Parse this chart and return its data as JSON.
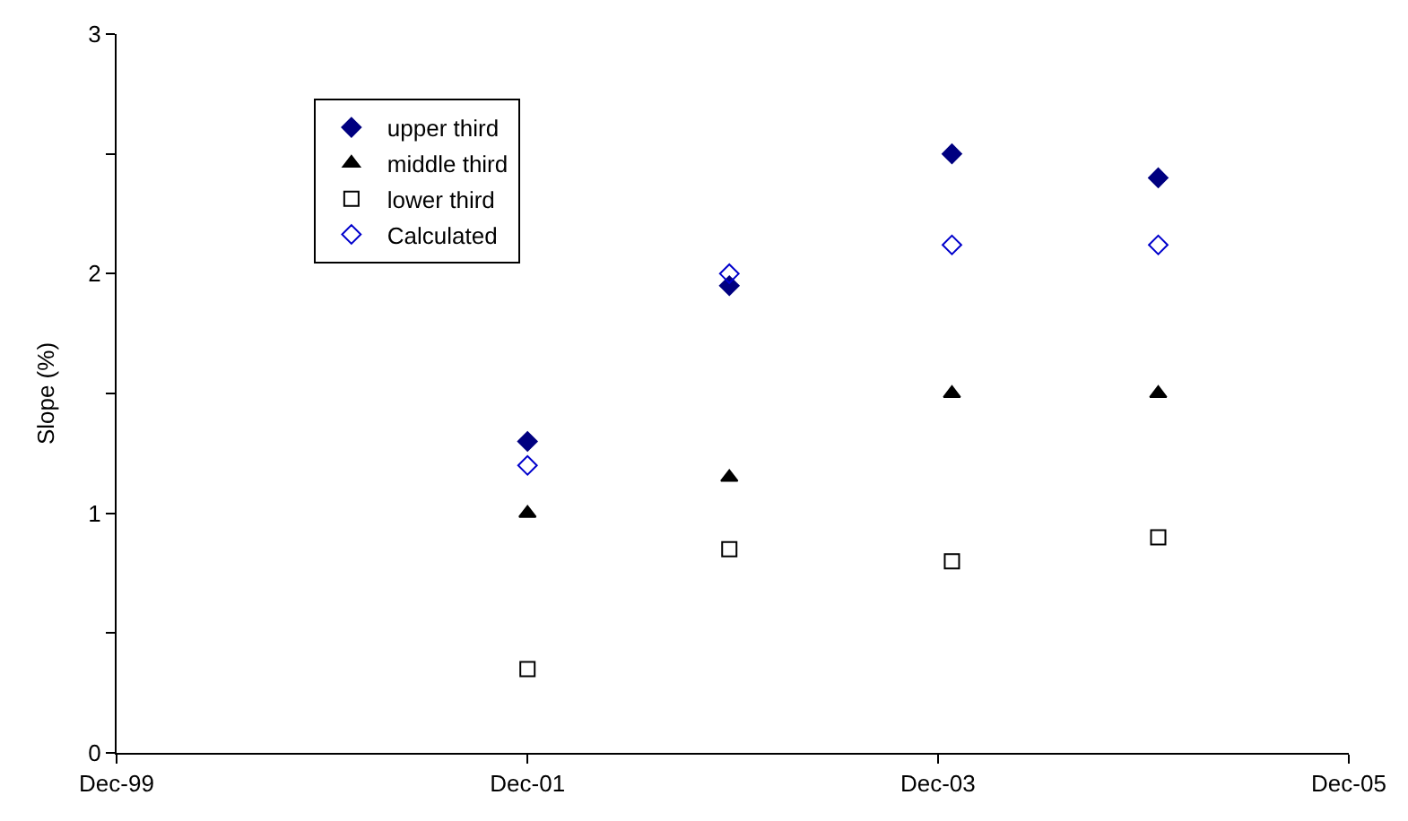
{
  "chart_data": {
    "type": "scatter",
    "ylabel": "Slope (%)",
    "x": [
      "2001-12-01",
      "2002-11-25",
      "2003-12-26",
      "2004-12-27"
    ],
    "series": [
      {
        "name": "upper third",
        "color": "#000080",
        "marker": "diamond",
        "values": [
          1.3,
          1.95,
          2.5,
          2.4
        ]
      },
      {
        "name": "middle third",
        "color": "#000000",
        "marker": "triangle",
        "values": [
          1.0,
          1.15,
          1.5,
          1.5
        ]
      },
      {
        "name": "lower third",
        "color": "#000000",
        "marker": "square-open",
        "values": [
          0.35,
          0.85,
          0.8,
          0.9
        ]
      },
      {
        "name": "Calculated",
        "color": "#0000cc",
        "marker": "diamond-open",
        "values": [
          1.2,
          2.0,
          2.12,
          2.12
        ]
      }
    ],
    "xlim": [
      "1999-12-01",
      "2005-12-01"
    ],
    "xticks": [
      {
        "value": "1999-12-01",
        "label": "Dec-99"
      },
      {
        "value": "2001-12-01",
        "label": "Dec-01"
      },
      {
        "value": "2003-12-01",
        "label": "Dec-03"
      },
      {
        "value": "2005-12-01",
        "label": "Dec-05"
      }
    ],
    "ylim": [
      0,
      3
    ],
    "yticks": [
      0,
      {
        "value": 0.5,
        "label": null
      },
      1,
      {
        "value": 1.5,
        "label": null
      },
      2,
      {
        "value": 2.5,
        "label": null
      },
      3
    ],
    "legend": "top left"
  }
}
